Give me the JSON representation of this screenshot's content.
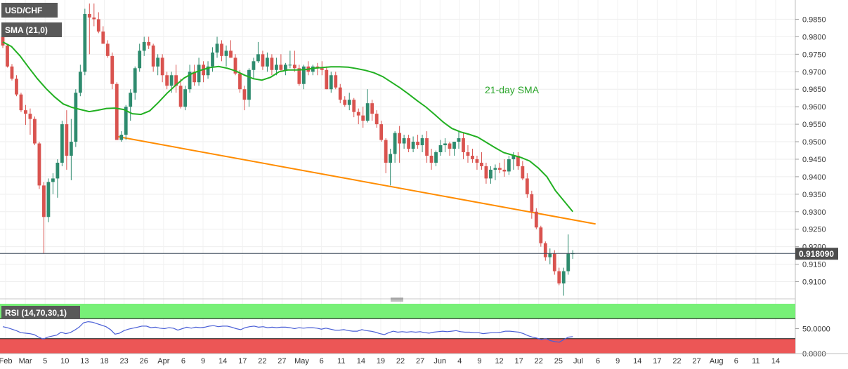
{
  "chart_data": {
    "type": "candlestick",
    "symbol": "USD/CHF",
    "indicator_label": "SMA (21,0)",
    "sma_annotation": "21-day SMA",
    "rsi_label": "RSI (14,70,30,1)",
    "last_price_label": "0.918090",
    "last_price": 0.91809,
    "price_axis": {
      "range": [
        0.9055,
        0.9905
      ],
      "ticks": [
        "0.9850",
        "0.9800",
        "0.9750",
        "0.9700",
        "0.9650",
        "0.9600",
        "0.9550",
        "0.9500",
        "0.9450",
        "0.9400",
        "0.9350",
        "0.9300",
        "0.9250",
        "0.9200",
        "0.9150",
        "0.9100"
      ],
      "tick_values": [
        0.985,
        0.98,
        0.975,
        0.97,
        0.965,
        0.96,
        0.955,
        0.95,
        0.945,
        0.94,
        0.935,
        0.93,
        0.925,
        0.92,
        0.915,
        0.91
      ]
    },
    "rsi_axis": {
      "range": [
        0,
        100
      ],
      "ticks": [
        "50.0000",
        "0.0000"
      ],
      "tick_values": [
        50,
        0
      ],
      "overbought": 70,
      "oversold": 30
    },
    "x_axis": {
      "labels": [
        "Feb",
        "Mar",
        "5",
        "10",
        "13",
        "18",
        "23",
        "26",
        "Apr",
        "6",
        "9",
        "14",
        "17",
        "22",
        "27",
        "May",
        "6",
        "11",
        "14",
        "19",
        "22",
        "27",
        "Jun",
        "4",
        "9",
        "12",
        "17",
        "22",
        "25",
        "Jul",
        "6",
        "9",
        "14",
        "17",
        "22",
        "27",
        "Aug",
        "6",
        "11",
        "14"
      ]
    },
    "candles": [
      [
        0.98,
        0.9805,
        0.9768,
        0.9775
      ],
      [
        0.9775,
        0.9778,
        0.9712,
        0.9715
      ],
      [
        0.9715,
        0.9722,
        0.9675,
        0.968
      ],
      [
        0.968,
        0.969,
        0.963,
        0.9635
      ],
      [
        0.9635,
        0.964,
        0.9585,
        0.959
      ],
      [
        0.959,
        0.9605,
        0.9548,
        0.958
      ],
      [
        0.958,
        0.9595,
        0.952,
        0.9565
      ],
      [
        0.9565,
        0.9572,
        0.949,
        0.9495
      ],
      [
        0.9495,
        0.95,
        0.9365,
        0.9375
      ],
      [
        0.9375,
        0.9385,
        0.918,
        0.9285
      ],
      [
        0.9285,
        0.9395,
        0.927,
        0.9385
      ],
      [
        0.9385,
        0.941,
        0.935,
        0.9395
      ],
      [
        0.9395,
        0.945,
        0.934,
        0.944
      ],
      [
        0.944,
        0.956,
        0.943,
        0.955
      ],
      [
        0.955,
        0.959,
        0.942,
        0.946
      ],
      [
        0.946,
        0.9565,
        0.939,
        0.95
      ],
      [
        0.95,
        0.965,
        0.9485,
        0.964
      ],
      [
        0.964,
        0.972,
        0.963,
        0.97
      ],
      [
        0.97,
        0.988,
        0.969,
        0.9865
      ],
      [
        0.9865,
        0.9895,
        0.975,
        0.9855
      ],
      [
        0.9855,
        0.9895,
        0.983,
        0.985
      ],
      [
        0.985,
        0.987,
        0.981,
        0.9815
      ],
      [
        0.9815,
        0.983,
        0.978,
        0.978
      ],
      [
        0.978,
        0.979,
        0.974,
        0.9745
      ],
      [
        0.9745,
        0.9755,
        0.965,
        0.9665
      ],
      [
        0.9665,
        0.967,
        0.9505,
        0.9505
      ],
      [
        0.9505,
        0.953,
        0.95,
        0.952
      ],
      [
        0.952,
        0.9605,
        0.9505,
        0.96
      ],
      [
        0.96,
        0.965,
        0.956,
        0.964
      ],
      [
        0.964,
        0.9715,
        0.962,
        0.971
      ],
      [
        0.971,
        0.978,
        0.97,
        0.976
      ],
      [
        0.976,
        0.98,
        0.9745,
        0.9785
      ],
      [
        0.9785,
        0.98,
        0.9765,
        0.9775
      ],
      [
        0.9775,
        0.978,
        0.97,
        0.9715
      ],
      [
        0.9715,
        0.975,
        0.969,
        0.974
      ],
      [
        0.974,
        0.975,
        0.967,
        0.969
      ],
      [
        0.969,
        0.97,
        0.965,
        0.966
      ],
      [
        0.966,
        0.97,
        0.964,
        0.969
      ],
      [
        0.969,
        0.972,
        0.964,
        0.966
      ],
      [
        0.966,
        0.968,
        0.9595,
        0.96
      ],
      [
        0.96,
        0.966,
        0.959,
        0.965
      ],
      [
        0.965,
        0.972,
        0.964,
        0.97
      ],
      [
        0.97,
        0.972,
        0.966,
        0.967
      ],
      [
        0.967,
        0.974,
        0.966,
        0.972
      ],
      [
        0.972,
        0.973,
        0.967,
        0.969
      ],
      [
        0.969,
        0.973,
        0.968,
        0.9715
      ],
      [
        0.9715,
        0.977,
        0.97,
        0.9755
      ],
      [
        0.9755,
        0.98,
        0.974,
        0.978
      ],
      [
        0.978,
        0.979,
        0.973,
        0.9745
      ],
      [
        0.9745,
        0.9775,
        0.9715,
        0.976
      ],
      [
        0.976,
        0.979,
        0.974,
        0.974
      ],
      [
        0.974,
        0.975,
        0.969,
        0.9695
      ],
      [
        0.9695,
        0.9705,
        0.964,
        0.965
      ],
      [
        0.965,
        0.966,
        0.959,
        0.962
      ],
      [
        0.962,
        0.971,
        0.96,
        0.9705
      ],
      [
        0.9705,
        0.974,
        0.968,
        0.973
      ],
      [
        0.973,
        0.9785,
        0.9725,
        0.975
      ],
      [
        0.975,
        0.976,
        0.9705,
        0.9715
      ],
      [
        0.9715,
        0.9755,
        0.97,
        0.974
      ],
      [
        0.974,
        0.975,
        0.969,
        0.9705
      ],
      [
        0.9705,
        0.974,
        0.969,
        0.972
      ],
      [
        0.972,
        0.975,
        0.97,
        0.9705
      ],
      [
        0.9705,
        0.9725,
        0.969,
        0.972
      ],
      [
        0.972,
        0.976,
        0.971,
        0.972
      ],
      [
        0.972,
        0.976,
        0.97,
        0.971
      ],
      [
        0.971,
        0.972,
        0.966,
        0.9665
      ],
      [
        0.9665,
        0.972,
        0.965,
        0.9715
      ],
      [
        0.9715,
        0.973,
        0.969,
        0.97
      ],
      [
        0.97,
        0.972,
        0.969,
        0.9715
      ],
      [
        0.9715,
        0.9725,
        0.969,
        0.971
      ],
      [
        0.971,
        0.973,
        0.969,
        0.9705
      ],
      [
        0.9705,
        0.9715,
        0.965,
        0.965
      ],
      [
        0.965,
        0.97,
        0.964,
        0.969
      ],
      [
        0.969,
        0.97,
        0.965,
        0.9655
      ],
      [
        0.9655,
        0.9665,
        0.961,
        0.962
      ],
      [
        0.962,
        0.963,
        0.96,
        0.9605
      ],
      [
        0.9605,
        0.964,
        0.959,
        0.962
      ],
      [
        0.962,
        0.9625,
        0.957,
        0.9585
      ],
      [
        0.9585,
        0.9595,
        0.955,
        0.9575
      ],
      [
        0.9575,
        0.96,
        0.954,
        0.956
      ],
      [
        0.956,
        0.965,
        0.9555,
        0.961
      ],
      [
        0.961,
        0.962,
        0.956,
        0.958
      ],
      [
        0.958,
        0.959,
        0.954,
        0.955
      ],
      [
        0.955,
        0.956,
        0.95,
        0.9505
      ],
      [
        0.9505,
        0.951,
        0.941,
        0.944
      ],
      [
        0.944,
        0.948,
        0.9375,
        0.9465
      ],
      [
        0.9465,
        0.953,
        0.944,
        0.9525
      ],
      [
        0.9525,
        0.9545,
        0.944,
        0.9495
      ],
      [
        0.9495,
        0.952,
        0.948,
        0.951
      ],
      [
        0.951,
        0.952,
        0.947,
        0.948
      ],
      [
        0.948,
        0.9515,
        0.947,
        0.95
      ],
      [
        0.95,
        0.952,
        0.948,
        0.949
      ],
      [
        0.949,
        0.952,
        0.947,
        0.951
      ],
      [
        0.951,
        0.953,
        0.944,
        0.946
      ],
      [
        0.946,
        0.948,
        0.942,
        0.944
      ],
      [
        0.944,
        0.9475,
        0.943,
        0.947
      ],
      [
        0.947,
        0.9505,
        0.946,
        0.949
      ],
      [
        0.949,
        0.951,
        0.947,
        0.9495
      ],
      [
        0.9495,
        0.95,
        0.946,
        0.948
      ],
      [
        0.948,
        0.95,
        0.946,
        0.95
      ],
      [
        0.95,
        0.953,
        0.948,
        0.951
      ],
      [
        0.951,
        0.9525,
        0.945,
        0.947
      ],
      [
        0.947,
        0.949,
        0.944,
        0.946
      ],
      [
        0.946,
        0.948,
        0.944,
        0.945
      ],
      [
        0.945,
        0.946,
        0.942,
        0.944
      ],
      [
        0.944,
        0.947,
        0.942,
        0.943
      ],
      [
        0.943,
        0.944,
        0.938,
        0.9395
      ],
      [
        0.9395,
        0.943,
        0.938,
        0.942
      ],
      [
        0.942,
        0.9435,
        0.939,
        0.9425
      ],
      [
        0.9425,
        0.944,
        0.941,
        0.942
      ],
      [
        0.942,
        0.945,
        0.94,
        0.9415
      ],
      [
        0.9415,
        0.946,
        0.9405,
        0.945
      ],
      [
        0.945,
        0.947,
        0.942,
        0.946
      ],
      [
        0.946,
        0.947,
        0.942,
        0.943
      ],
      [
        0.943,
        0.9445,
        0.939,
        0.9395
      ],
      [
        0.9395,
        0.941,
        0.934,
        0.935
      ],
      [
        0.935,
        0.936,
        0.928,
        0.93
      ],
      [
        0.93,
        0.931,
        0.925,
        0.9255
      ],
      [
        0.9255,
        0.926,
        0.92,
        0.921
      ],
      [
        0.921,
        0.9215,
        0.916,
        0.917
      ],
      [
        0.917,
        0.9195,
        0.915,
        0.918
      ],
      [
        0.918,
        0.919,
        0.912,
        0.913
      ],
      [
        0.913,
        0.914,
        0.909,
        0.9095
      ],
      [
        0.9095,
        0.914,
        0.906,
        0.913
      ],
      [
        0.913,
        0.9235,
        0.912,
        0.918
      ],
      [
        0.918,
        0.919,
        0.9165,
        0.9181
      ]
    ],
    "sma": [
      0.9785,
      0.9772,
      0.9745,
      0.9712,
      0.968,
      0.9652,
      0.9628,
      0.9608,
      0.9598,
      0.9592,
      0.9586,
      0.959,
      0.9595,
      0.9596,
      0.9592,
      0.958,
      0.9578,
      0.9588,
      0.9612,
      0.9638,
      0.9661,
      0.9682,
      0.9696,
      0.9705,
      0.9712,
      0.9715,
      0.971,
      0.9702,
      0.969,
      0.968,
      0.9676,
      0.9684,
      0.97,
      0.9705,
      0.9705,
      0.9706,
      0.971,
      0.9712,
      0.9714,
      0.9714,
      0.9713,
      0.9709,
      0.9704,
      0.9697,
      0.9686,
      0.967,
      0.9654,
      0.9636,
      0.9617,
      0.9599,
      0.9578,
      0.9556,
      0.9538,
      0.9528,
      0.9521,
      0.9513,
      0.9498,
      0.9483,
      0.9469,
      0.9462,
      0.9455,
      0.9445,
      0.9425,
      0.94,
      0.936,
      0.933,
      0.93
    ],
    "trendline": {
      "from": [
        25,
        0.9515
      ],
      "to": [
        130,
        0.9265
      ]
    },
    "rsi": [
      54,
      52,
      49,
      46,
      42,
      41,
      40,
      38,
      33,
      29,
      33,
      35,
      37,
      43,
      40,
      42,
      47,
      53,
      62,
      64,
      63,
      60,
      57,
      54,
      48,
      39,
      41,
      46,
      49,
      51,
      53,
      55,
      55,
      52,
      53,
      51,
      50,
      52,
      51,
      47,
      50,
      53,
      51,
      53,
      52,
      53,
      55,
      56,
      54,
      55,
      55,
      53,
      50,
      48,
      52,
      54,
      55,
      53,
      54,
      52,
      53,
      52,
      53,
      53,
      52,
      50,
      52,
      51,
      52,
      52,
      51,
      49,
      51,
      49,
      47,
      47,
      48,
      46,
      45,
      45,
      48,
      46,
      45,
      43,
      40,
      38,
      42,
      45,
      43,
      44,
      43,
      44,
      43,
      44,
      42,
      41,
      43,
      44,
      45,
      44,
      45,
      46,
      44,
      43,
      43,
      42,
      42,
      40,
      41,
      42,
      42,
      43,
      45,
      45,
      44,
      43,
      40,
      36,
      33,
      31,
      28,
      30,
      26,
      24,
      23,
      28,
      33,
      34
    ]
  },
  "colors": {
    "bull": "#2e8b6e",
    "bear": "#d9534f",
    "sma": "#22b022",
    "trendline": "#ff8c00",
    "rsi_line": "#4a5fd6",
    "rsi_overbought_fill": "#77f077",
    "rsi_oversold_fill": "#ec5656",
    "label_bg": "#595959"
  }
}
